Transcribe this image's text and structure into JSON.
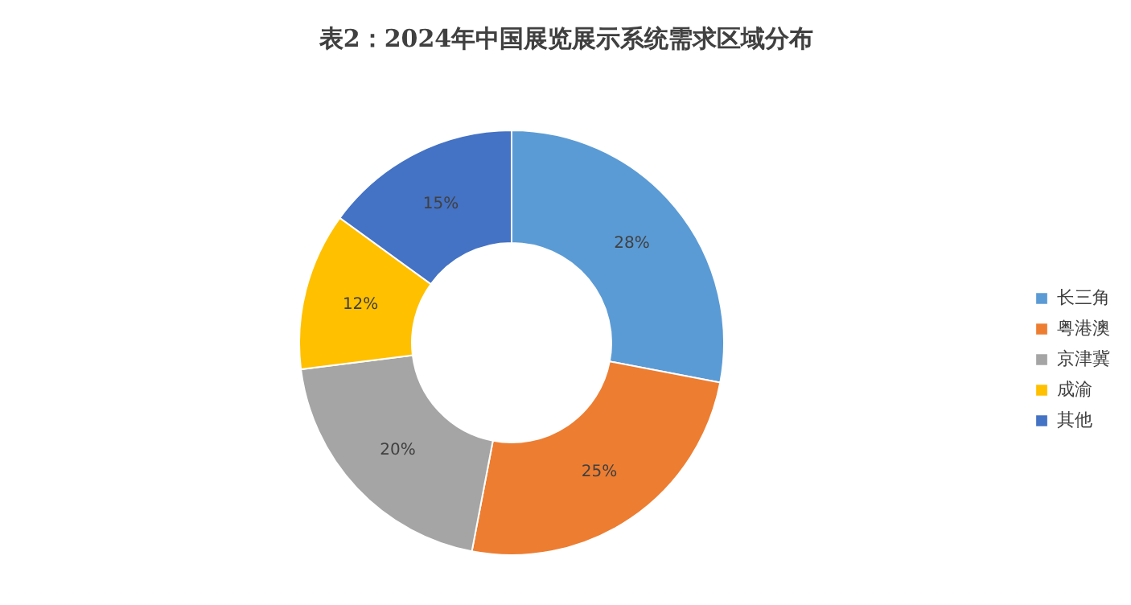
{
  "chart_data": {
    "type": "donut",
    "title": "表2：2024年中国展览展示系统需求区域分布",
    "categories": [
      "长三角",
      "粤港澳",
      "京津冀",
      "成渝",
      "其他"
    ],
    "values": [
      28,
      25,
      20,
      12,
      15
    ],
    "colors": [
      "#5b9bd5",
      "#ed7d31",
      "#a5a5a5",
      "#ffc000",
      "#4472c4"
    ],
    "value_labels": [
      "28%",
      "25%",
      "20%",
      "12%",
      "15%"
    ],
    "legend": "right"
  }
}
